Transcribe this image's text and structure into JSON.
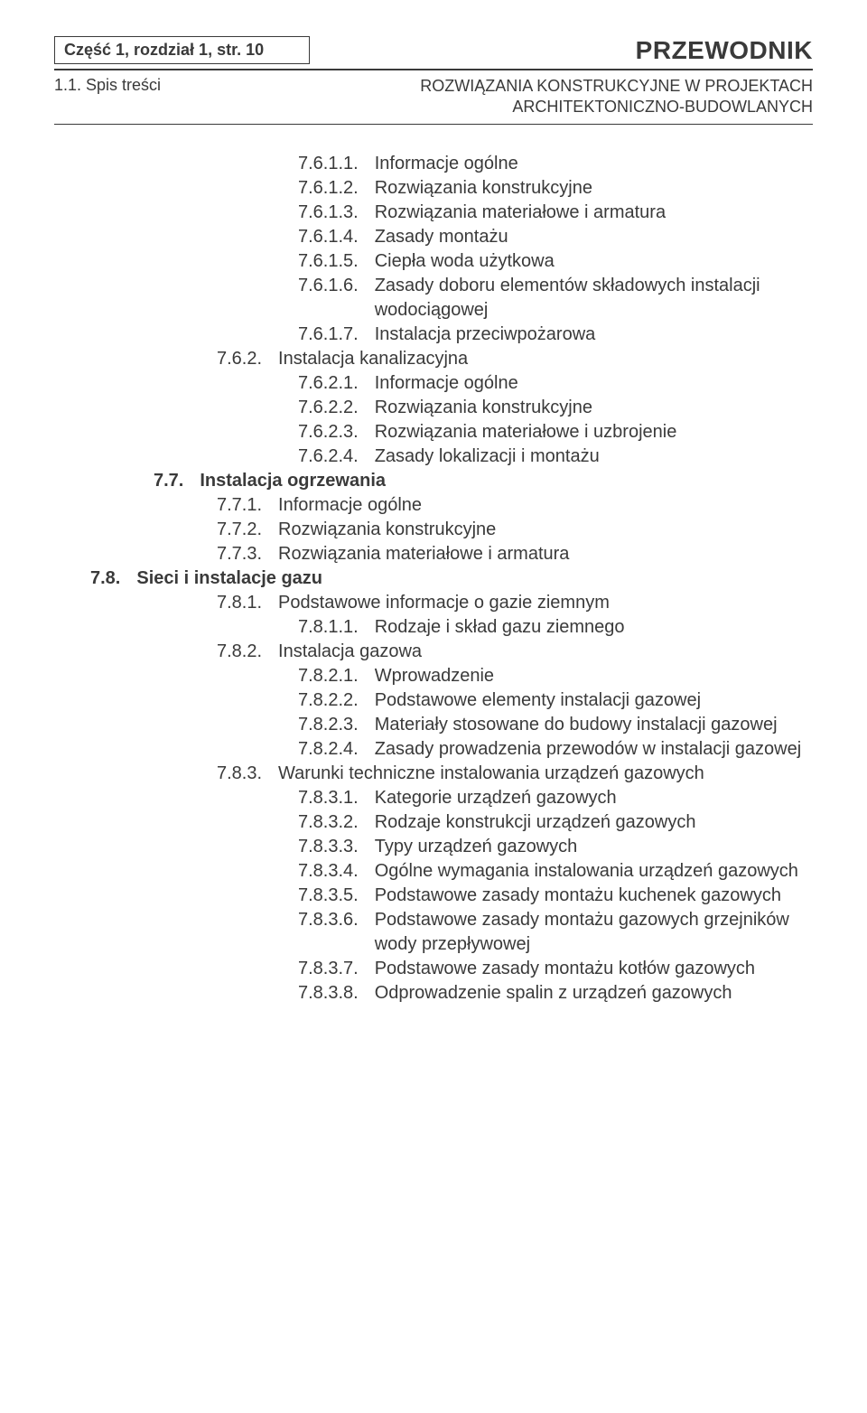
{
  "header": {
    "page_ref": "Część 1, rozdział 1, str. 10",
    "title_main": "PRZEWODNIK",
    "section_label": "1.1. Spis treści",
    "subtitle_line1": "ROZWIĄZANIA KONSTRUKCYJNE W PROJEKTACH",
    "subtitle_line2": "ARCHITEKTONICZNO-BUDOWLANYCH"
  },
  "colors": {
    "text": "#3a3a3a",
    "border": "#3a3a3a",
    "bg": "#ffffff"
  },
  "typography": {
    "body_font": "Arial, Helvetica, sans-serif",
    "body_size_pt": 15,
    "header_size_pt": 21
  },
  "toc": [
    {
      "level": 3,
      "num": "7.6.1.1.",
      "txt": "Informacje ogólne",
      "bold": false
    },
    {
      "level": 3,
      "num": "7.6.1.2.",
      "txt": "Rozwiązania konstrukcyjne",
      "bold": false
    },
    {
      "level": 3,
      "num": "7.6.1.3.",
      "txt": "Rozwiązania materiałowe i armatura",
      "bold": false
    },
    {
      "level": 3,
      "num": "7.6.1.4.",
      "txt": "Zasady montażu",
      "bold": false
    },
    {
      "level": 3,
      "num": "7.6.1.5.",
      "txt": "Ciepła woda użytkowa",
      "bold": false
    },
    {
      "level": 3,
      "num": "7.6.1.6.",
      "txt": "Zasady doboru elementów składowych instalacji wodociągowej",
      "bold": false
    },
    {
      "level": 3,
      "num": "7.6.1.7.",
      "txt": "Instalacja przeciwpożarowa",
      "bold": false
    },
    {
      "level": 2,
      "num": "7.6.2.",
      "txt": "Instalacja kanalizacyjna",
      "bold": false
    },
    {
      "level": 3,
      "num": "7.6.2.1.",
      "txt": "Informacje ogólne",
      "bold": false
    },
    {
      "level": 3,
      "num": "7.6.2.2.",
      "txt": "Rozwiązania konstrukcyjne",
      "bold": false
    },
    {
      "level": 3,
      "num": "7.6.2.3.",
      "txt": "Rozwiązania materiałowe i uzbrojenie",
      "bold": false
    },
    {
      "level": 3,
      "num": "7.6.2.4.",
      "txt": "Zasady lokalizacji i montażu",
      "bold": false
    },
    {
      "level": 1,
      "num": "7.7.",
      "txt": "Instalacja ogrzewania",
      "bold": true
    },
    {
      "level": 2,
      "num": "7.7.1.",
      "txt": "Informacje ogólne",
      "bold": false
    },
    {
      "level": 2,
      "num": "7.7.2.",
      "txt": "Rozwiązania konstrukcyjne",
      "bold": false
    },
    {
      "level": 2,
      "num": "7.7.3.",
      "txt": "Rozwiązania materiałowe i armatura",
      "bold": false
    },
    {
      "level": 0,
      "num": "7.8.",
      "txt": "Sieci i instalacje gazu",
      "bold": true
    },
    {
      "level": 2,
      "num": "7.8.1.",
      "txt": "Podstawowe informacje o gazie ziemnym",
      "bold": false
    },
    {
      "level": 3,
      "num": "7.8.1.1.",
      "txt": "Rodzaje i skład gazu ziemnego",
      "bold": false
    },
    {
      "level": 2,
      "num": "7.8.2.",
      "txt": "Instalacja gazowa",
      "bold": false
    },
    {
      "level": 3,
      "num": "7.8.2.1.",
      "txt": "Wprowadzenie",
      "bold": false
    },
    {
      "level": 3,
      "num": "7.8.2.2.",
      "txt": "Podstawowe elementy instalacji gazowej",
      "bold": false
    },
    {
      "level": 3,
      "num": "7.8.2.3.",
      "txt": "Materiały stosowane do budowy instalacji gazowej",
      "bold": false
    },
    {
      "level": 3,
      "num": "7.8.2.4.",
      "txt": "Zasady prowadzenia przewodów w instalacji gazowej",
      "bold": false
    },
    {
      "level": 2,
      "num": "7.8.3.",
      "txt": "Warunki techniczne instalowania urządzeń gazowych",
      "bold": false
    },
    {
      "level": 3,
      "num": "7.8.3.1.",
      "txt": "Kategorie urządzeń gazowych",
      "bold": false
    },
    {
      "level": 3,
      "num": "7.8.3.2.",
      "txt": "Rodzaje konstrukcji urządzeń gazowych",
      "bold": false
    },
    {
      "level": 3,
      "num": "7.8.3.3.",
      "txt": "Typy urządzeń gazowych",
      "bold": false
    },
    {
      "level": 3,
      "num": "7.8.3.4.",
      "txt": "Ogólne wymagania instalowania urządzeń gazowych",
      "bold": false
    },
    {
      "level": 3,
      "num": "7.8.3.5.",
      "txt": "Podstawowe zasady montażu kuchenek gazowych",
      "bold": false
    },
    {
      "level": 3,
      "num": "7.8.3.6.",
      "txt": "Podstawowe zasady montażu gazowych grzejników wody przepływowej",
      "bold": false
    },
    {
      "level": 3,
      "num": "7.8.3.7.",
      "txt": "Podstawowe zasady montażu kotłów gazowych",
      "bold": false
    },
    {
      "level": 3,
      "num": "7.8.3.8.",
      "txt": "Odprowadzenie spalin z urządzeń gazowych",
      "bold": false
    }
  ]
}
